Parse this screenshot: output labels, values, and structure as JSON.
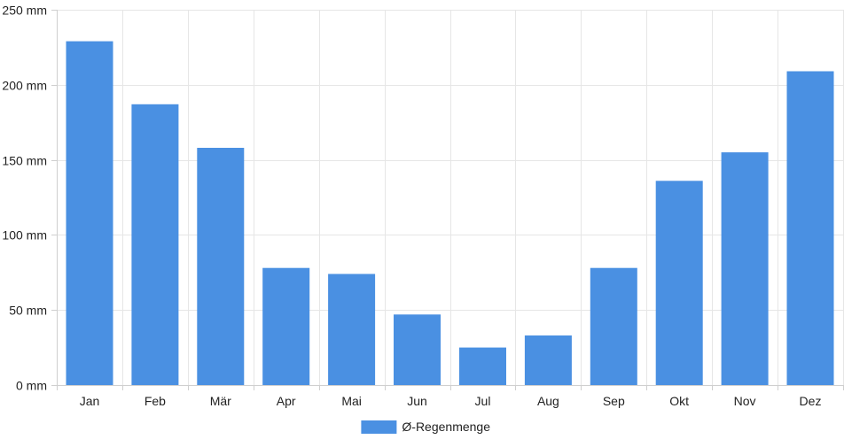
{
  "chart_data": {
    "type": "bar",
    "title": "",
    "xlabel": "",
    "ylabel": "",
    "unit": "mm",
    "categories": [
      "Jan",
      "Feb",
      "Mär",
      "Apr",
      "Mai",
      "Jun",
      "Jul",
      "Aug",
      "Sep",
      "Okt",
      "Nov",
      "Dez"
    ],
    "series": [
      {
        "name": "Ø-Regenmenge",
        "color": "#4a90e2",
        "values": [
          229,
          187,
          158,
          78,
          74,
          47,
          25,
          33,
          78,
          136,
          155,
          209
        ]
      }
    ],
    "ylim": [
      0,
      250
    ],
    "yticks": [
      "0 mm",
      "50 mm",
      "100 mm",
      "150 mm",
      "200 mm",
      "250 mm"
    ],
    "ytick_values": [
      0,
      50,
      100,
      150,
      200,
      250
    ],
    "grid": true,
    "legend_position": "bottom-center"
  }
}
